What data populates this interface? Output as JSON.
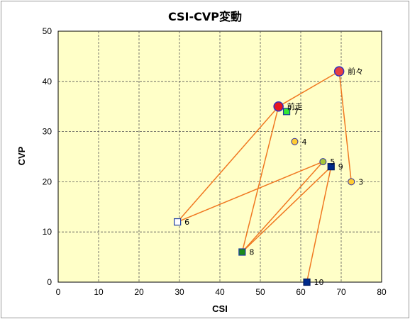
{
  "chart_data": {
    "type": "scatter",
    "title": "CSI-CVP変動",
    "xlabel": "CSI",
    "ylabel": "CVP",
    "xlim": [
      0,
      80
    ],
    "ylim": [
      0,
      50
    ],
    "xticks": [
      0,
      10,
      20,
      30,
      40,
      50,
      60,
      70,
      80
    ],
    "yticks": [
      0,
      10,
      20,
      30,
      40,
      50
    ],
    "grid": true,
    "colors": {
      "plot_bg": "#ffffc8",
      "line": "#f07820",
      "grid": "#555555"
    },
    "points": [
      {
        "label": "前々",
        "x": 69.5,
        "y": 42,
        "marker": "circle-large",
        "fill": "#e84040",
        "stroke": "#3030c0"
      },
      {
        "label": "前走",
        "x": 54.5,
        "y": 35,
        "marker": "circle-large",
        "fill": "#e81820",
        "stroke": "#3030c0"
      },
      {
        "label": "3",
        "x": 72.5,
        "y": 20,
        "marker": "circle",
        "fill": "#ffcc33",
        "stroke": "#3030a0"
      },
      {
        "label": "4",
        "x": 58.5,
        "y": 28,
        "marker": "circle",
        "fill": "#ffcc33",
        "stroke": "#3030a0"
      },
      {
        "label": "5",
        "x": 65.5,
        "y": 24,
        "marker": "circle",
        "fill": "#a8c838",
        "stroke": "#3030a0"
      },
      {
        "label": "6",
        "x": 29.5,
        "y": 12,
        "marker": "square",
        "fill": "#ffffff",
        "stroke": "#1a3aa0"
      },
      {
        "label": "7",
        "x": 56.5,
        "y": 34,
        "marker": "square",
        "fill": "#33e833",
        "stroke": "#1a3aa0"
      },
      {
        "label": "8",
        "x": 45.5,
        "y": 6,
        "marker": "square",
        "fill": "#1a8a1a",
        "stroke": "#1a3aa0"
      },
      {
        "label": "9",
        "x": 67.5,
        "y": 23,
        "marker": "square",
        "fill": "#002a8a",
        "stroke": "#001a60"
      },
      {
        "label": "10",
        "x": 61.5,
        "y": 0,
        "marker": "square",
        "fill": "#002a8a",
        "stroke": "#001a60"
      }
    ],
    "lines": [
      [
        [
          54.5,
          35
        ],
        [
          69.5,
          42
        ]
      ],
      [
        [
          69.5,
          42
        ],
        [
          72.5,
          20
        ]
      ],
      [
        [
          54.5,
          35
        ],
        [
          29.5,
          12
        ]
      ],
      [
        [
          29.5,
          12
        ],
        [
          65.5,
          24
        ]
      ],
      [
        [
          65.5,
          24
        ],
        [
          45.5,
          6
        ]
      ],
      [
        [
          54.5,
          35
        ],
        [
          45.5,
          6
        ]
      ],
      [
        [
          67.5,
          23
        ],
        [
          61.5,
          0
        ]
      ],
      [
        [
          45.5,
          6
        ],
        [
          67.5,
          23
        ]
      ]
    ]
  }
}
